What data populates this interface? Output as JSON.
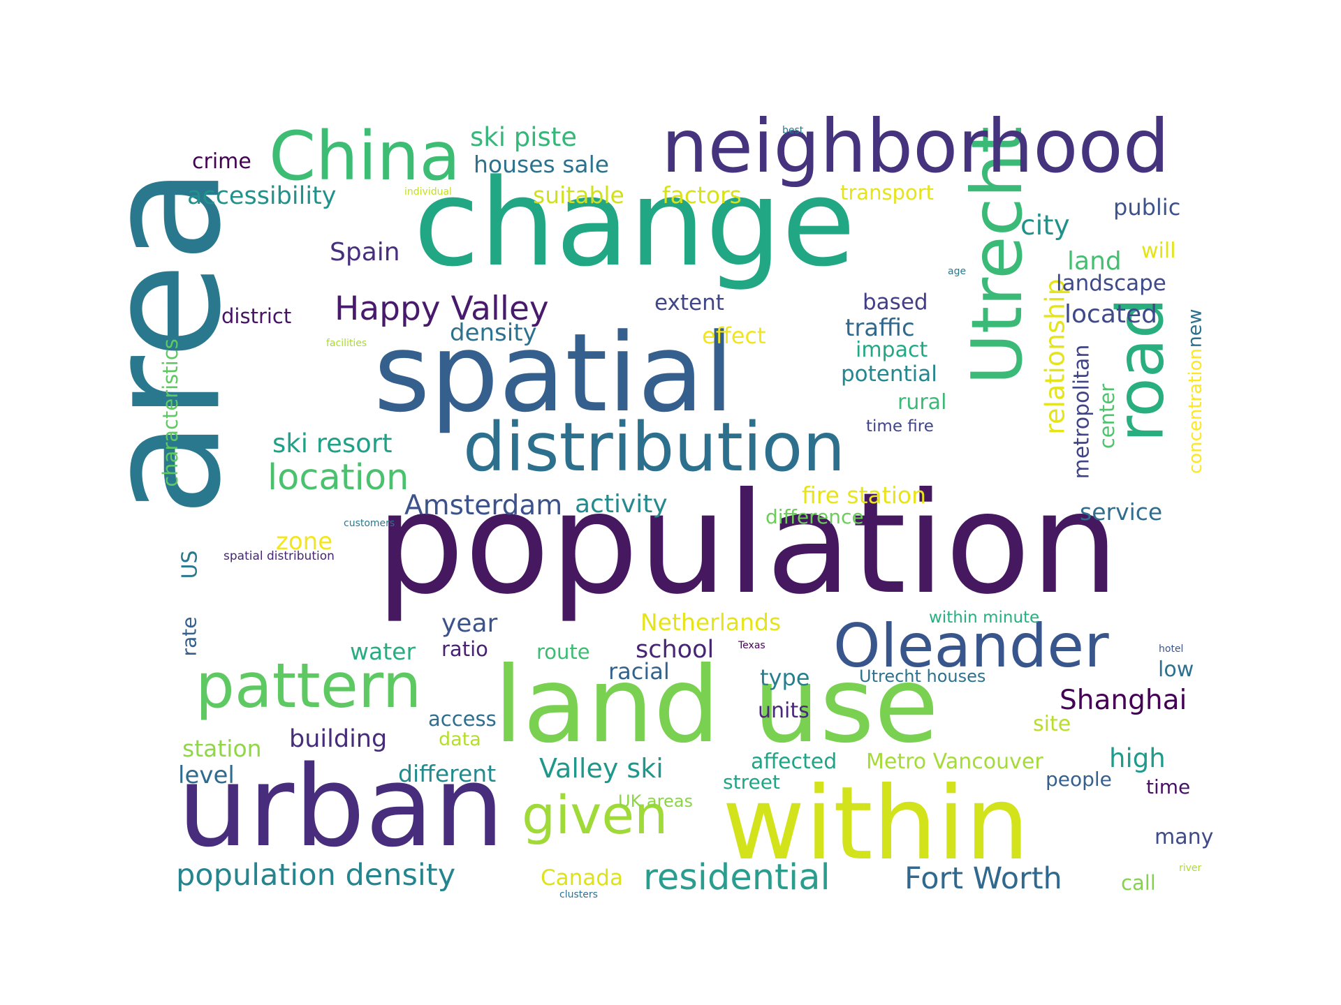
{
  "words": [
    {
      "text": "area",
      "color": "#2a788e"
    },
    {
      "text": "change",
      "color": "#22a785"
    },
    {
      "text": "population",
      "color": "#46185f"
    },
    {
      "text": "spatial",
      "color": "#355f8d"
    },
    {
      "text": "neighborhood",
      "color": "#46337e"
    },
    {
      "text": "land use",
      "color": "#7ad151"
    },
    {
      "text": "urban",
      "color": "#472d7b"
    },
    {
      "text": "within",
      "color": "#d2e21b"
    },
    {
      "text": "distribution",
      "color": "#2d708e"
    },
    {
      "text": "China",
      "color": "#3dbc74"
    },
    {
      "text": "Utrecht",
      "color": "#3aba76"
    },
    {
      "text": "road",
      "color": "#29af7f"
    },
    {
      "text": "Oleander",
      "color": "#39568c"
    },
    {
      "text": "pattern",
      "color": "#5ec962"
    },
    {
      "text": "given",
      "color": "#a0da39"
    },
    {
      "text": "residential",
      "color": "#2a9d8f"
    },
    {
      "text": "location",
      "color": "#4ac16d"
    },
    {
      "text": "Happy Valley",
      "color": "#481a6c"
    },
    {
      "text": "population density",
      "color": "#25858e"
    },
    {
      "text": "Fort Worth",
      "color": "#31688e"
    },
    {
      "text": "relationship",
      "color": "#e4e419"
    },
    {
      "text": "Shanghai",
      "color": "#440154"
    },
    {
      "text": "Amsterdam",
      "color": "#3b528b"
    },
    {
      "text": "ski resort",
      "color": "#1fa187"
    },
    {
      "text": "ski piste",
      "color": "#35b779"
    },
    {
      "text": "houses sale",
      "color": "#2c728e"
    },
    {
      "text": "accessibility",
      "color": "#21918c"
    },
    {
      "text": "Spain",
      "color": "#472f7d"
    },
    {
      "text": "activity",
      "color": "#238a8d"
    },
    {
      "text": "Valley ski",
      "color": "#1f988b"
    },
    {
      "text": "suitable",
      "color": "#d0e11c"
    },
    {
      "text": "factors",
      "color": "#d8e219"
    },
    {
      "text": "city",
      "color": "#20928c"
    },
    {
      "text": "land",
      "color": "#44bf70"
    },
    {
      "text": "located",
      "color": "#3e4989"
    },
    {
      "text": "public",
      "color": "#3b528b"
    },
    {
      "text": "landscape",
      "color": "#3e4a89"
    },
    {
      "text": "metropolitan",
      "color": "#404387"
    },
    {
      "text": "center",
      "color": "#4ec36b"
    },
    {
      "text": "concentration",
      "color": "#fde725"
    },
    {
      "text": "characteristics",
      "color": "#5ec962"
    },
    {
      "text": "density",
      "color": "#2c728e"
    },
    {
      "text": "fire station",
      "color": "#e7e419"
    },
    {
      "text": "difference",
      "color": "#6ccd5a"
    },
    {
      "text": "service",
      "color": "#2f6c8e"
    },
    {
      "text": "traffic",
      "color": "#31688e"
    },
    {
      "text": "impact",
      "color": "#22a884"
    },
    {
      "text": "potential",
      "color": "#24868e"
    },
    {
      "text": "rural",
      "color": "#3aba76"
    },
    {
      "text": "time fire",
      "color": "#404588"
    },
    {
      "text": "based",
      "color": "#433e85"
    },
    {
      "text": "extent",
      "color": "#404688"
    },
    {
      "text": "effect",
      "color": "#f1e51d"
    },
    {
      "text": "will",
      "color": "#e2e418"
    },
    {
      "text": "new",
      "color": "#2d708e"
    },
    {
      "text": "crime",
      "color": "#440154"
    },
    {
      "text": "transport",
      "color": "#e5e419"
    },
    {
      "text": "district",
      "color": "#471365"
    },
    {
      "text": "zone",
      "color": "#f4e61e"
    },
    {
      "text": "US",
      "color": "#2a788e"
    },
    {
      "text": "rate",
      "color": "#355f8d"
    },
    {
      "text": "year",
      "color": "#3b528b"
    },
    {
      "text": "water",
      "color": "#27ad81"
    },
    {
      "text": "ratio",
      "color": "#482173"
    },
    {
      "text": "route",
      "color": "#3dbc74"
    },
    {
      "text": "school",
      "color": "#482475"
    },
    {
      "text": "Netherlands",
      "color": "#e5e419"
    },
    {
      "text": "racial",
      "color": "#33638d"
    },
    {
      "text": "type",
      "color": "#277f8e"
    },
    {
      "text": "units",
      "color": "#482878"
    },
    {
      "text": "access",
      "color": "#2e6e8e"
    },
    {
      "text": "data",
      "color": "#b5de2b"
    },
    {
      "text": "building",
      "color": "#472c7a"
    },
    {
      "text": "station",
      "color": "#8fd744"
    },
    {
      "text": "level",
      "color": "#2f6b8e"
    },
    {
      "text": "different",
      "color": "#238a8d"
    },
    {
      "text": "affected",
      "color": "#20a486"
    },
    {
      "text": "Metro Vancouver",
      "color": "#a5db36"
    },
    {
      "text": "high",
      "color": "#1e9b8a"
    },
    {
      "text": "street",
      "color": "#21a685"
    },
    {
      "text": "people",
      "color": "#355f8d"
    },
    {
      "text": "time",
      "color": "#471164"
    },
    {
      "text": "UK areas",
      "color": "#8bd646"
    },
    {
      "text": "many",
      "color": "#3e4a89"
    },
    {
      "text": "Canada",
      "color": "#dde318"
    },
    {
      "text": "call",
      "color": "#84d44b"
    },
    {
      "text": "site",
      "color": "#b8de29"
    },
    {
      "text": "low",
      "color": "#2d708e"
    },
    {
      "text": "within minute",
      "color": "#29af7f"
    },
    {
      "text": "Utrecht houses",
      "color": "#2c728e"
    },
    {
      "text": "best",
      "color": "#2a788e"
    },
    {
      "text": "individual",
      "color": "#c2df23"
    },
    {
      "text": "age",
      "color": "#2a788e"
    },
    {
      "text": "facilities",
      "color": "#a8db34"
    },
    {
      "text": "customers",
      "color": "#2a788e"
    },
    {
      "text": "spatial distribution",
      "color": "#482475"
    },
    {
      "text": "Texas",
      "color": "#440154"
    },
    {
      "text": "hotel",
      "color": "#3b528b"
    },
    {
      "text": "river",
      "color": "#addc30"
    },
    {
      "text": "clusters",
      "color": "#2c728e"
    }
  ]
}
